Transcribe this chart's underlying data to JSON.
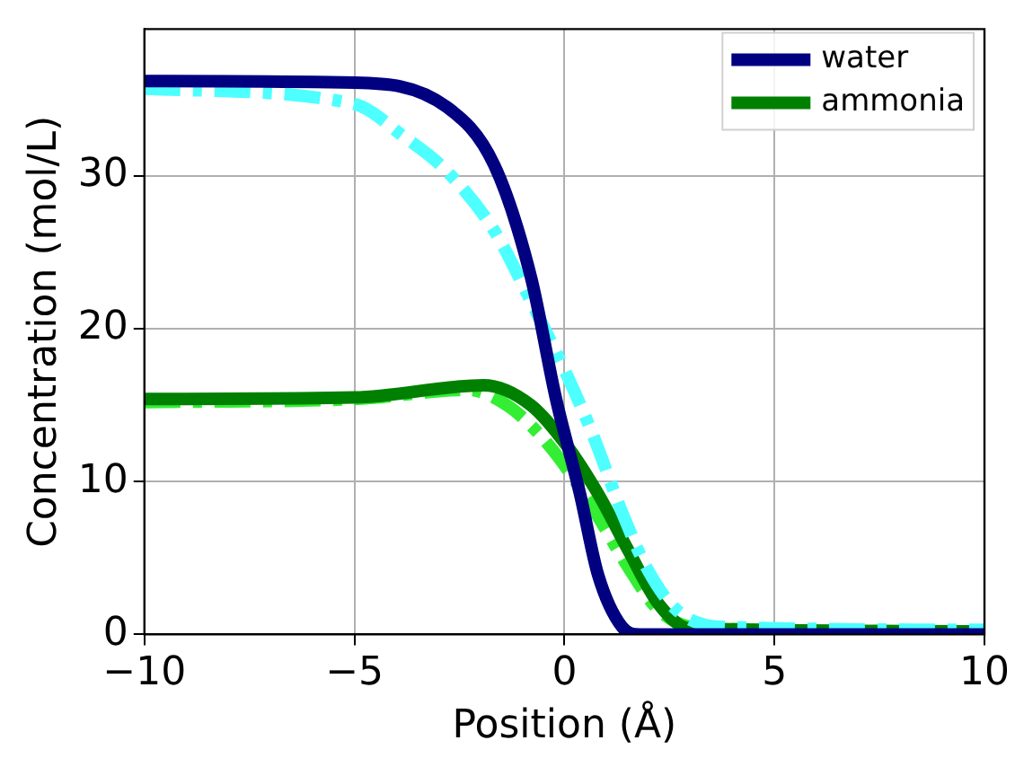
{
  "chart_data": {
    "type": "line",
    "xlabel": "Position (Å)",
    "ylabel": "Concentration (mol/L)",
    "xlim": [
      -10,
      10
    ],
    "xticks": [
      {
        "value": -10,
        "label": "−10"
      },
      {
        "value": -5,
        "label": "−5"
      },
      0,
      5,
      10
    ],
    "ylim": [
      0,
      39.6
    ],
    "yticks": [
      0,
      10,
      20,
      30
    ],
    "grid": true,
    "legend": "top right",
    "marker": "none",
    "series": [
      {
        "name": "water",
        "color": "#000080",
        "line_style": "solid",
        "x": [
          -10,
          -5,
          -2.8,
          -1.67,
          -0.8,
          -0.2,
          0.37,
          0.8,
          1.37,
          1.8,
          10
        ],
        "values": [
          36.2,
          36.1,
          34.5,
          30.7,
          23.4,
          15.4,
          9.2,
          3.9,
          0.5,
          0,
          0
        ]
      },
      {
        "color": "#4dffff",
        "line_style": "dashed",
        "x": [
          -10,
          -5,
          -3.84,
          -2.8,
          -1.67,
          -0.8,
          0.07,
          0.67,
          1.37,
          1.97,
          2.67,
          3.7,
          10
        ],
        "values": [
          35.7,
          34.7,
          32.6,
          30.3,
          26.4,
          21.8,
          16.9,
          13.1,
          8,
          4.3,
          1.6,
          0.5,
          0.3
        ]
      },
      {
        "name": "ammonia",
        "color": "#008000",
        "line_style": "solid",
        "x": [
          -10,
          -5,
          -1.93,
          -0.8,
          0.07,
          0.8,
          1.54,
          2.24,
          2.97,
          10
        ],
        "values": [
          15.4,
          15.5,
          16.3,
          15,
          12.3,
          9.2,
          5.4,
          2,
          0.4,
          0.2
        ]
      },
      {
        "color": "#33ee33",
        "line_style": "dashed",
        "x": [
          -10,
          -5,
          -2.3,
          -1.37,
          -0.6,
          0.07,
          0.8,
          1.54,
          2.24,
          3.27,
          10
        ],
        "values": [
          15.2,
          15.4,
          16,
          15,
          13.1,
          10.8,
          7.7,
          4.3,
          1.6,
          0.4,
          0.2
        ]
      }
    ]
  }
}
